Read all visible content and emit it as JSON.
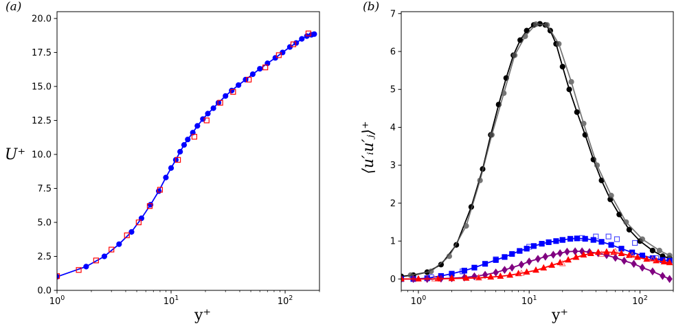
{
  "chart_data": [
    {
      "type": "line",
      "panel_label": "(a)",
      "xlabel": "y⁺",
      "ylabel": "U⁺",
      "xscale": "log",
      "xlim": [
        1,
        200
      ],
      "ylim": [
        0,
        20.5
      ],
      "xticks": [
        {
          "value": 1,
          "base": "10",
          "exp": "0"
        },
        {
          "value": 10,
          "base": "10",
          "exp": "1"
        },
        {
          "value": 100,
          "base": "10",
          "exp": "2"
        }
      ],
      "yticks": [
        0.0,
        2.5,
        5.0,
        7.5,
        10.0,
        12.5,
        15.0,
        17.5,
        20.0
      ],
      "ytick_labels": [
        "0.0",
        "2.5",
        "5.0",
        "7.5",
        "10.0",
        "12.5",
        "15.0",
        "17.5",
        "20.0"
      ],
      "series": [
        {
          "color": "#0000ff",
          "marker": "circle-filled",
          "line": true,
          "x": [
            1.0,
            1.8,
            2.6,
            3.5,
            4.5,
            5.5,
            6.6,
            7.8,
            9.0,
            10.0,
            11.0,
            12.0,
            13.0,
            14.0,
            15.5,
            17.0,
            19.0,
            21.0,
            23.5,
            26.0,
            30.0,
            34.0,
            39.0,
            45.0,
            52.0,
            60.0,
            70.0,
            82.0,
            95.0,
            110.0,
            125.0,
            140.0,
            155.0,
            170.0,
            180.0
          ],
          "y": [
            1.0,
            1.75,
            2.5,
            3.4,
            4.3,
            5.3,
            6.3,
            7.3,
            8.3,
            9.0,
            9.6,
            10.2,
            10.7,
            11.1,
            11.6,
            12.1,
            12.6,
            13.0,
            13.4,
            13.8,
            14.3,
            14.7,
            15.1,
            15.5,
            15.9,
            16.3,
            16.7,
            17.1,
            17.5,
            17.9,
            18.2,
            18.5,
            18.7,
            18.8,
            18.85
          ]
        },
        {
          "color": "#ff0000",
          "marker": "square-open",
          "line": false,
          "x": [
            1.0,
            1.55,
            2.2,
            3.0,
            4.1,
            5.2,
            6.5,
            8.0,
            11.5,
            16.0,
            20.5,
            27.0,
            35.0,
            48.0,
            67.0,
            88.0,
            118.0,
            160.0
          ],
          "y": [
            1.05,
            1.5,
            2.2,
            3.0,
            4.05,
            5.0,
            6.2,
            7.4,
            9.6,
            11.3,
            12.5,
            13.8,
            14.6,
            15.5,
            16.4,
            17.3,
            18.1,
            18.9
          ]
        }
      ]
    },
    {
      "type": "line",
      "panel_label": "(b)",
      "xlabel": "y⁺",
      "ylabel": "⟨u′ᵢu′ⱼ⟩⁺",
      "xscale": "log",
      "xlim": [
        0.7,
        200
      ],
      "ylim": [
        -0.3,
        7.05
      ],
      "xticks": [
        {
          "value": 1,
          "base": "10",
          "exp": "0"
        },
        {
          "value": 10,
          "base": "10",
          "exp": "1"
        },
        {
          "value": 100,
          "base": "10",
          "exp": "2"
        }
      ],
      "yticks": [
        0,
        1,
        2,
        3,
        4,
        5,
        6,
        7
      ],
      "ytick_labels": [
        "0",
        "1",
        "2",
        "3",
        "4",
        "5",
        "6",
        "7"
      ],
      "series": [
        {
          "color": "#000000",
          "marker": "circle-filled",
          "line": true,
          "opacity": 1,
          "x": [
            0.7,
            0.9,
            1.2,
            1.6,
            2.2,
            3.0,
            3.8,
            4.5,
            5.3,
            6.2,
            7.2,
            8.3,
            9.5,
            11.0,
            12.5,
            14.0,
            15.5,
            17.5,
            20.0,
            23.0,
            27.0,
            32.0,
            38.0,
            45.0,
            54.0,
            65.0,
            80.0,
            100.0,
            130.0,
            160.0,
            185.0
          ],
          "y": [
            0.07,
            0.1,
            0.18,
            0.38,
            0.9,
            1.9,
            2.9,
            3.8,
            4.6,
            5.3,
            5.9,
            6.3,
            6.55,
            6.7,
            6.73,
            6.7,
            6.55,
            6.2,
            5.6,
            5.0,
            4.4,
            3.8,
            3.15,
            2.6,
            2.1,
            1.7,
            1.3,
            1.0,
            0.75,
            0.6,
            0.55
          ]
        },
        {
          "color": "#555555",
          "marker": "circle-filled",
          "line": true,
          "opacity": 0.8,
          "x": [
            0.85,
            1.3,
            1.9,
            2.7,
            3.6,
            4.6,
            5.9,
            7.4,
            9.2,
            11.5,
            14.5,
            18.5,
            24.0,
            31.0,
            41.0,
            55.0,
            75.0,
            105.0,
            150.0,
            185.0
          ],
          "y": [
            0.1,
            0.2,
            0.6,
            1.4,
            2.6,
            3.8,
            4.9,
            5.9,
            6.4,
            6.72,
            6.7,
            6.2,
            5.2,
            4.1,
            3.0,
            2.2,
            1.5,
            1.05,
            0.75,
            0.62
          ]
        },
        {
          "color": "#0000ff",
          "marker": "square-filled",
          "line": true,
          "opacity": 1,
          "x": [
            0.7,
            0.9,
            1.2,
            1.6,
            2.0,
            2.6,
            3.2,
            4.0,
            5.0,
            6.0,
            7.0,
            8.2,
            9.5,
            11.0,
            13.0,
            15.0,
            17.5,
            20.0,
            23.5,
            27.0,
            32.0,
            38.0,
            45.0,
            55.0,
            68.0,
            85.0,
            105.0,
            130.0,
            160.0,
            185.0
          ],
          "y": [
            0.0,
            0.0,
            0.02,
            0.08,
            0.14,
            0.22,
            0.3,
            0.4,
            0.5,
            0.58,
            0.66,
            0.74,
            0.8,
            0.87,
            0.93,
            0.97,
            1.0,
            1.03,
            1.06,
            1.07,
            1.06,
            1.03,
            0.98,
            0.9,
            0.8,
            0.7,
            0.62,
            0.55,
            0.5,
            0.48
          ]
        },
        {
          "color": "#0000ff",
          "marker": "square-open",
          "line": false,
          "opacity": 0.7,
          "x": [
            1.3,
            2.5,
            5.0,
            10.0,
            20.0,
            30.0,
            40.0,
            52.0,
            62.0,
            90.0,
            140.0
          ],
          "y": [
            0.05,
            0.2,
            0.52,
            0.85,
            1.03,
            1.08,
            1.12,
            1.12,
            1.05,
            0.95,
            0.55
          ]
        },
        {
          "color": "#800080",
          "marker": "diamond-filled",
          "line": true,
          "opacity": 1,
          "x": [
            0.7,
            0.9,
            1.2,
            1.6,
            2.0,
            2.6,
            3.2,
            4.0,
            5.0,
            6.0,
            7.0,
            8.5,
            10.0,
            12.0,
            14.0,
            16.5,
            19.0,
            22.0,
            26.0,
            30.0,
            35.0,
            42.0,
            50.0,
            60.0,
            72.0,
            88.0,
            105.0,
            130.0,
            160.0,
            185.0
          ],
          "y": [
            0.0,
            0.0,
            0.0,
            0.01,
            0.02,
            0.04,
            0.07,
            0.11,
            0.17,
            0.24,
            0.3,
            0.38,
            0.46,
            0.53,
            0.59,
            0.64,
            0.68,
            0.72,
            0.73,
            0.73,
            0.71,
            0.68,
            0.63,
            0.56,
            0.48,
            0.4,
            0.3,
            0.2,
            0.08,
            0.0
          ]
        },
        {
          "color": "#ff0000",
          "marker": "triangle-filled",
          "line": true,
          "opacity": 1,
          "x": [
            0.7,
            1.0,
            1.5,
            2.0,
            2.7,
            3.5,
            4.5,
            5.5,
            6.7,
            8.0,
            9.5,
            11.5,
            13.5,
            16.0,
            19.0,
            22.5,
            26.5,
            31.0,
            36.0,
            42.0,
            50.0,
            58.0,
            68.0,
            80.0,
            95.0,
            115.0,
            140.0,
            165.0,
            185.0
          ],
          "y": [
            0.0,
            0.0,
            0.0,
            0.01,
            0.02,
            0.03,
            0.05,
            0.07,
            0.1,
            0.14,
            0.18,
            0.23,
            0.29,
            0.36,
            0.43,
            0.5,
            0.57,
            0.63,
            0.67,
            0.7,
            0.71,
            0.7,
            0.67,
            0.62,
            0.57,
            0.52,
            0.48,
            0.45,
            0.43
          ]
        },
        {
          "color": "#ff5555",
          "marker": "triangle-open",
          "line": false,
          "opacity": 0.8,
          "x": [
            1.4,
            3.5,
            8.5,
            20.0,
            45.0,
            60.0,
            85.0,
            130.0
          ],
          "y": [
            0.0,
            0.03,
            0.15,
            0.4,
            0.65,
            0.72,
            0.62,
            0.52
          ]
        }
      ]
    }
  ]
}
